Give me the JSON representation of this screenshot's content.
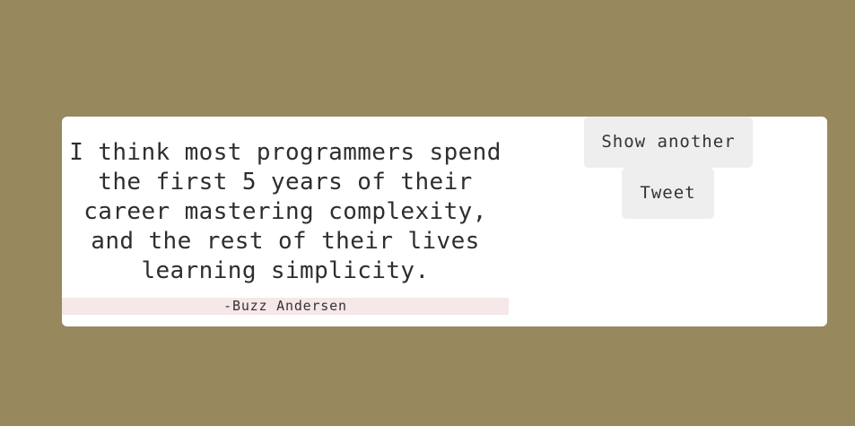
{
  "quote": {
    "text": "I think most programmers spend the first 5 years of their career mastering complexity, and the rest of their lives learning simplicity.",
    "author": "-Buzz Andersen"
  },
  "actions": {
    "show_another_label": "Show another",
    "tweet_label": "Tweet"
  },
  "colors": {
    "background": "#97885e",
    "card": "#ffffff",
    "author_highlight": "#f6e7e9",
    "button": "#eeeeee"
  }
}
